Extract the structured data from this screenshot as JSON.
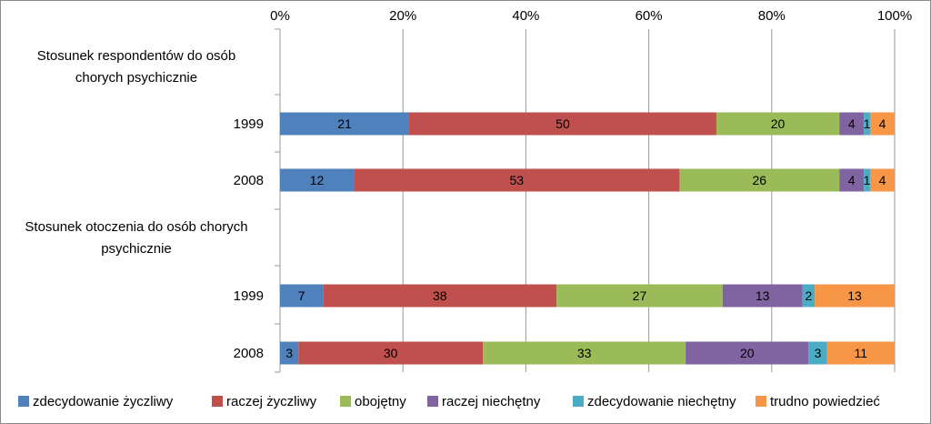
{
  "chart_data": {
    "type": "bar",
    "orientation": "horizontal",
    "stacked": true,
    "percent_stacked": true,
    "xlim": [
      0,
      100
    ],
    "x_ticks": [
      "0%",
      "20%",
      "40%",
      "60%",
      "80%",
      "100%"
    ],
    "x_tick_values": [
      0,
      20,
      40,
      60,
      80,
      100
    ],
    "x_axis_position": "top",
    "grid": true,
    "legend_position": "bottom",
    "groups": [
      {
        "title_lines": [
          "Stosunek respondentów do osób",
          "chorych psychicznie"
        ]
      },
      {
        "title_lines": [
          "Stosunek otoczenia do osób chorych",
          "psychicznie"
        ]
      }
    ],
    "categories": [
      "1999",
      "2008",
      "1999",
      "2008"
    ],
    "category_groups": [
      0,
      0,
      1,
      1
    ],
    "series": [
      {
        "name": "zdecydowanie życzliwy",
        "color": "#4f81bd",
        "values": [
          21,
          12,
          7,
          3
        ]
      },
      {
        "name": "raczej życzliwy",
        "color": "#c0504d",
        "values": [
          50,
          53,
          38,
          30
        ]
      },
      {
        "name": "obojętny",
        "color": "#9bbb59",
        "values": [
          20,
          26,
          27,
          33
        ]
      },
      {
        "name": "raczej niechętny",
        "color": "#8064a2",
        "values": [
          4,
          4,
          13,
          20
        ]
      },
      {
        "name": "zdecydowanie niechętny",
        "color": "#4bacc6",
        "values": [
          1,
          1,
          2,
          3
        ]
      },
      {
        "name": "trudno powiedzieć",
        "color": "#f79646",
        "values": [
          4,
          4,
          13,
          11
        ]
      }
    ]
  }
}
